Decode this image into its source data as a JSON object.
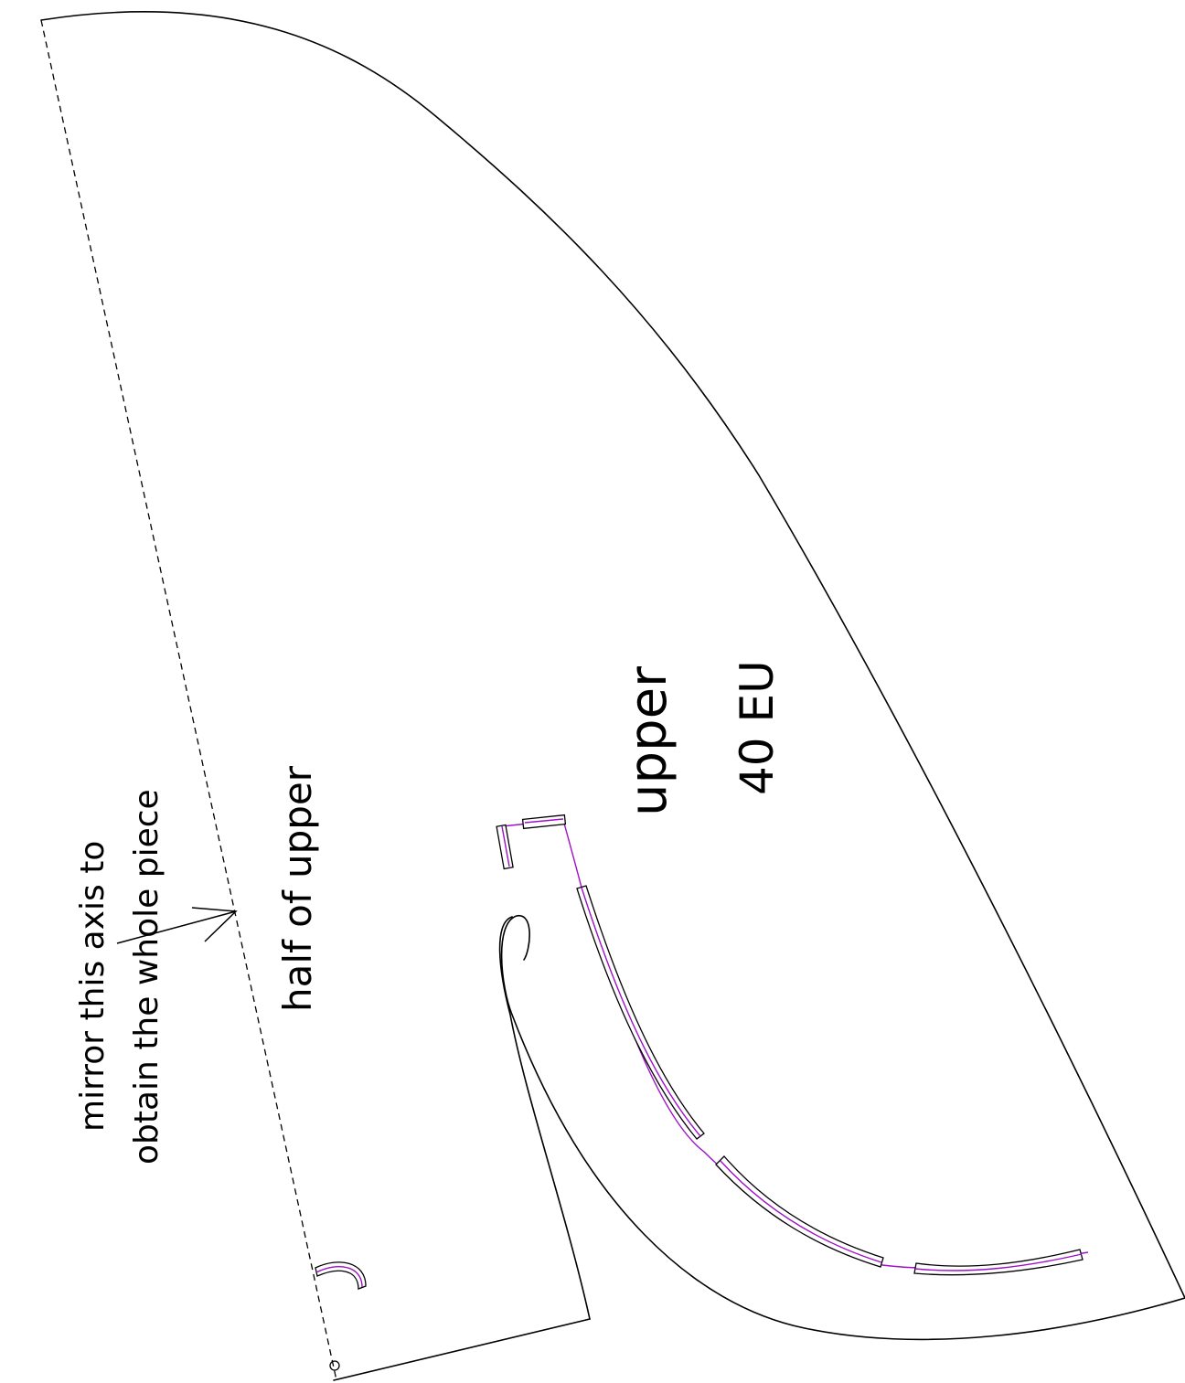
{
  "labels": {
    "piece_name": "upper",
    "size": "40 EU",
    "half_label": "half of upper",
    "mirror_note_line1": "mirror this axis to",
    "mirror_note_line2": "obtain the whole piece"
  },
  "colors": {
    "outline": "#000000",
    "guide_line": "#a010c8",
    "background": "#ffffff"
  }
}
